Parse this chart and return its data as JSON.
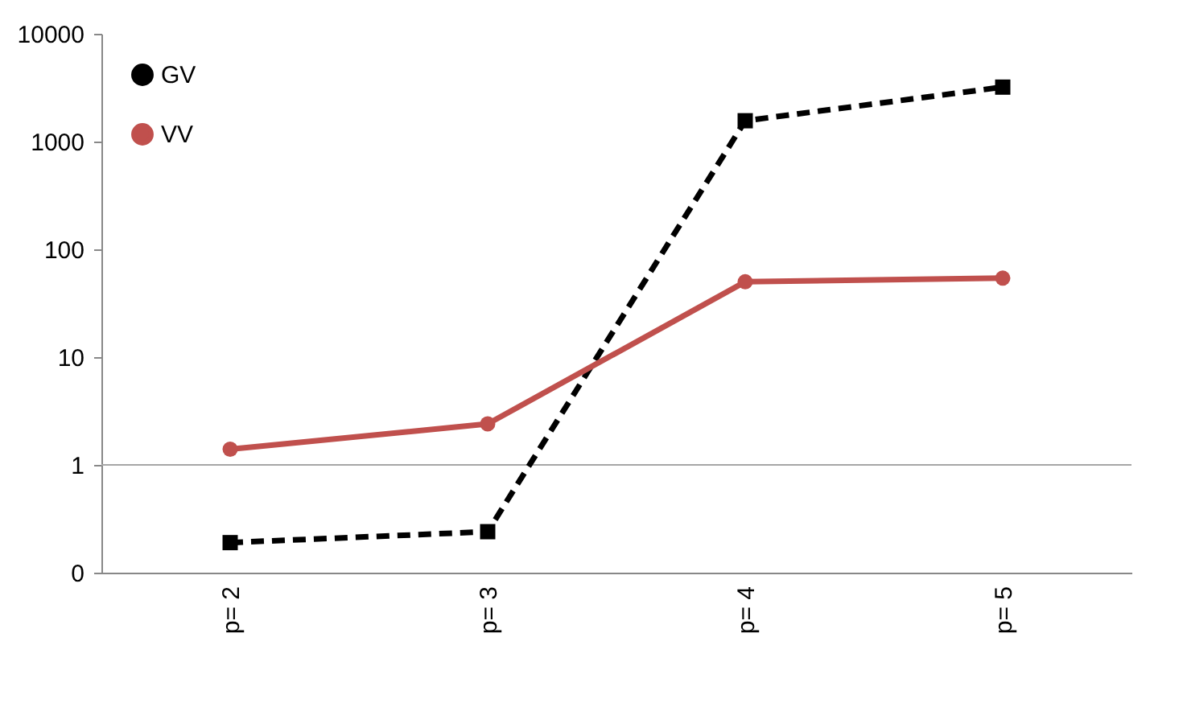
{
  "chart_data": {
    "type": "line",
    "categories": [
      "p= 2",
      "p= 3",
      "p= 4",
      "p= 5"
    ],
    "series": [
      {
        "name": "GV",
        "color": "#000000",
        "values": [
          0.19,
          0.24,
          1560,
          3200
        ],
        "marker": "square",
        "line_style": "dashed"
      },
      {
        "name": "VV",
        "color": "#c0504d",
        "values": [
          1.4,
          2.4,
          50,
          54
        ],
        "marker": "circle",
        "line_style": "solid"
      }
    ],
    "log": "y",
    "ylim": [
      0.1,
      10000
    ],
    "yticks": [
      {
        "value": 0.1,
        "label": "0"
      },
      1,
      10,
      100,
      1000,
      10000
    ],
    "ref_lines": [
      {
        "axis": "y",
        "value": 1,
        "color": "#a6a6a6"
      }
    ],
    "grid": false,
    "legend": "top left"
  }
}
